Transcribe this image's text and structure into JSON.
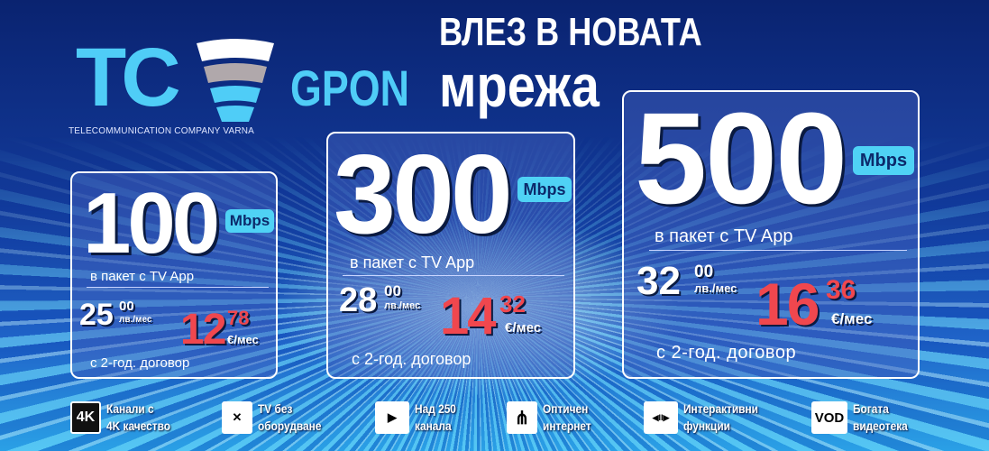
{
  "logo": {
    "letters": "TC",
    "tagline": "TELECOMMUNICATION COMPANY VARNA"
  },
  "headline": {
    "line1": "ВЛЕЗ В НОВАТА",
    "gpon": "GPON",
    "line2": "мрежа"
  },
  "plans": [
    {
      "speed": "100",
      "unit": "Mbps",
      "package": "в пакет с TV App",
      "bgn_int": "25",
      "bgn_dec": "00",
      "bgn_unit": "лв./мес",
      "eur_int": "12",
      "eur_dec": "78",
      "eur_unit": "€/мес",
      "contract": "с 2-год. договор"
    },
    {
      "speed": "300",
      "unit": "Mbps",
      "package": "в пакет с TV App",
      "bgn_int": "28",
      "bgn_dec": "00",
      "bgn_unit": "лв./мес",
      "eur_int": "14",
      "eur_dec": "32",
      "eur_unit": "€/мес",
      "contract": "с 2-год. договор"
    },
    {
      "speed": "500",
      "unit": "Mbps",
      "package": "в пакет с TV App",
      "bgn_int": "32",
      "bgn_dec": "00",
      "bgn_unit": "лв./мес",
      "eur_int": "16",
      "eur_dec": "36",
      "eur_unit": "€/мес",
      "contract": "с 2-год. договор"
    }
  ],
  "features": [
    {
      "icon": "4k-icon",
      "glyph": "4K",
      "line1": "Канали с",
      "line2": "4K качество"
    },
    {
      "icon": "no-equipment-icon",
      "glyph": "✕",
      "line1": "TV без",
      "line2": "оборудване"
    },
    {
      "icon": "tv-play-icon",
      "glyph": "▶",
      "line1": "Над 250",
      "line2": "канала"
    },
    {
      "icon": "fiber-optic-icon",
      "glyph": "⋔",
      "line1": "Оптичен",
      "line2": "интернет"
    },
    {
      "icon": "interactive-icon",
      "glyph": "◀II▶",
      "line1": "Интерактивни",
      "line2": "функции"
    },
    {
      "icon": "vod-icon",
      "glyph": "VOD",
      "line1": "Богата",
      "line2": "видеотека"
    }
  ],
  "colors": {
    "accent": "#4fd2f5",
    "price": "#f0474e",
    "background": "#0a2370"
  }
}
